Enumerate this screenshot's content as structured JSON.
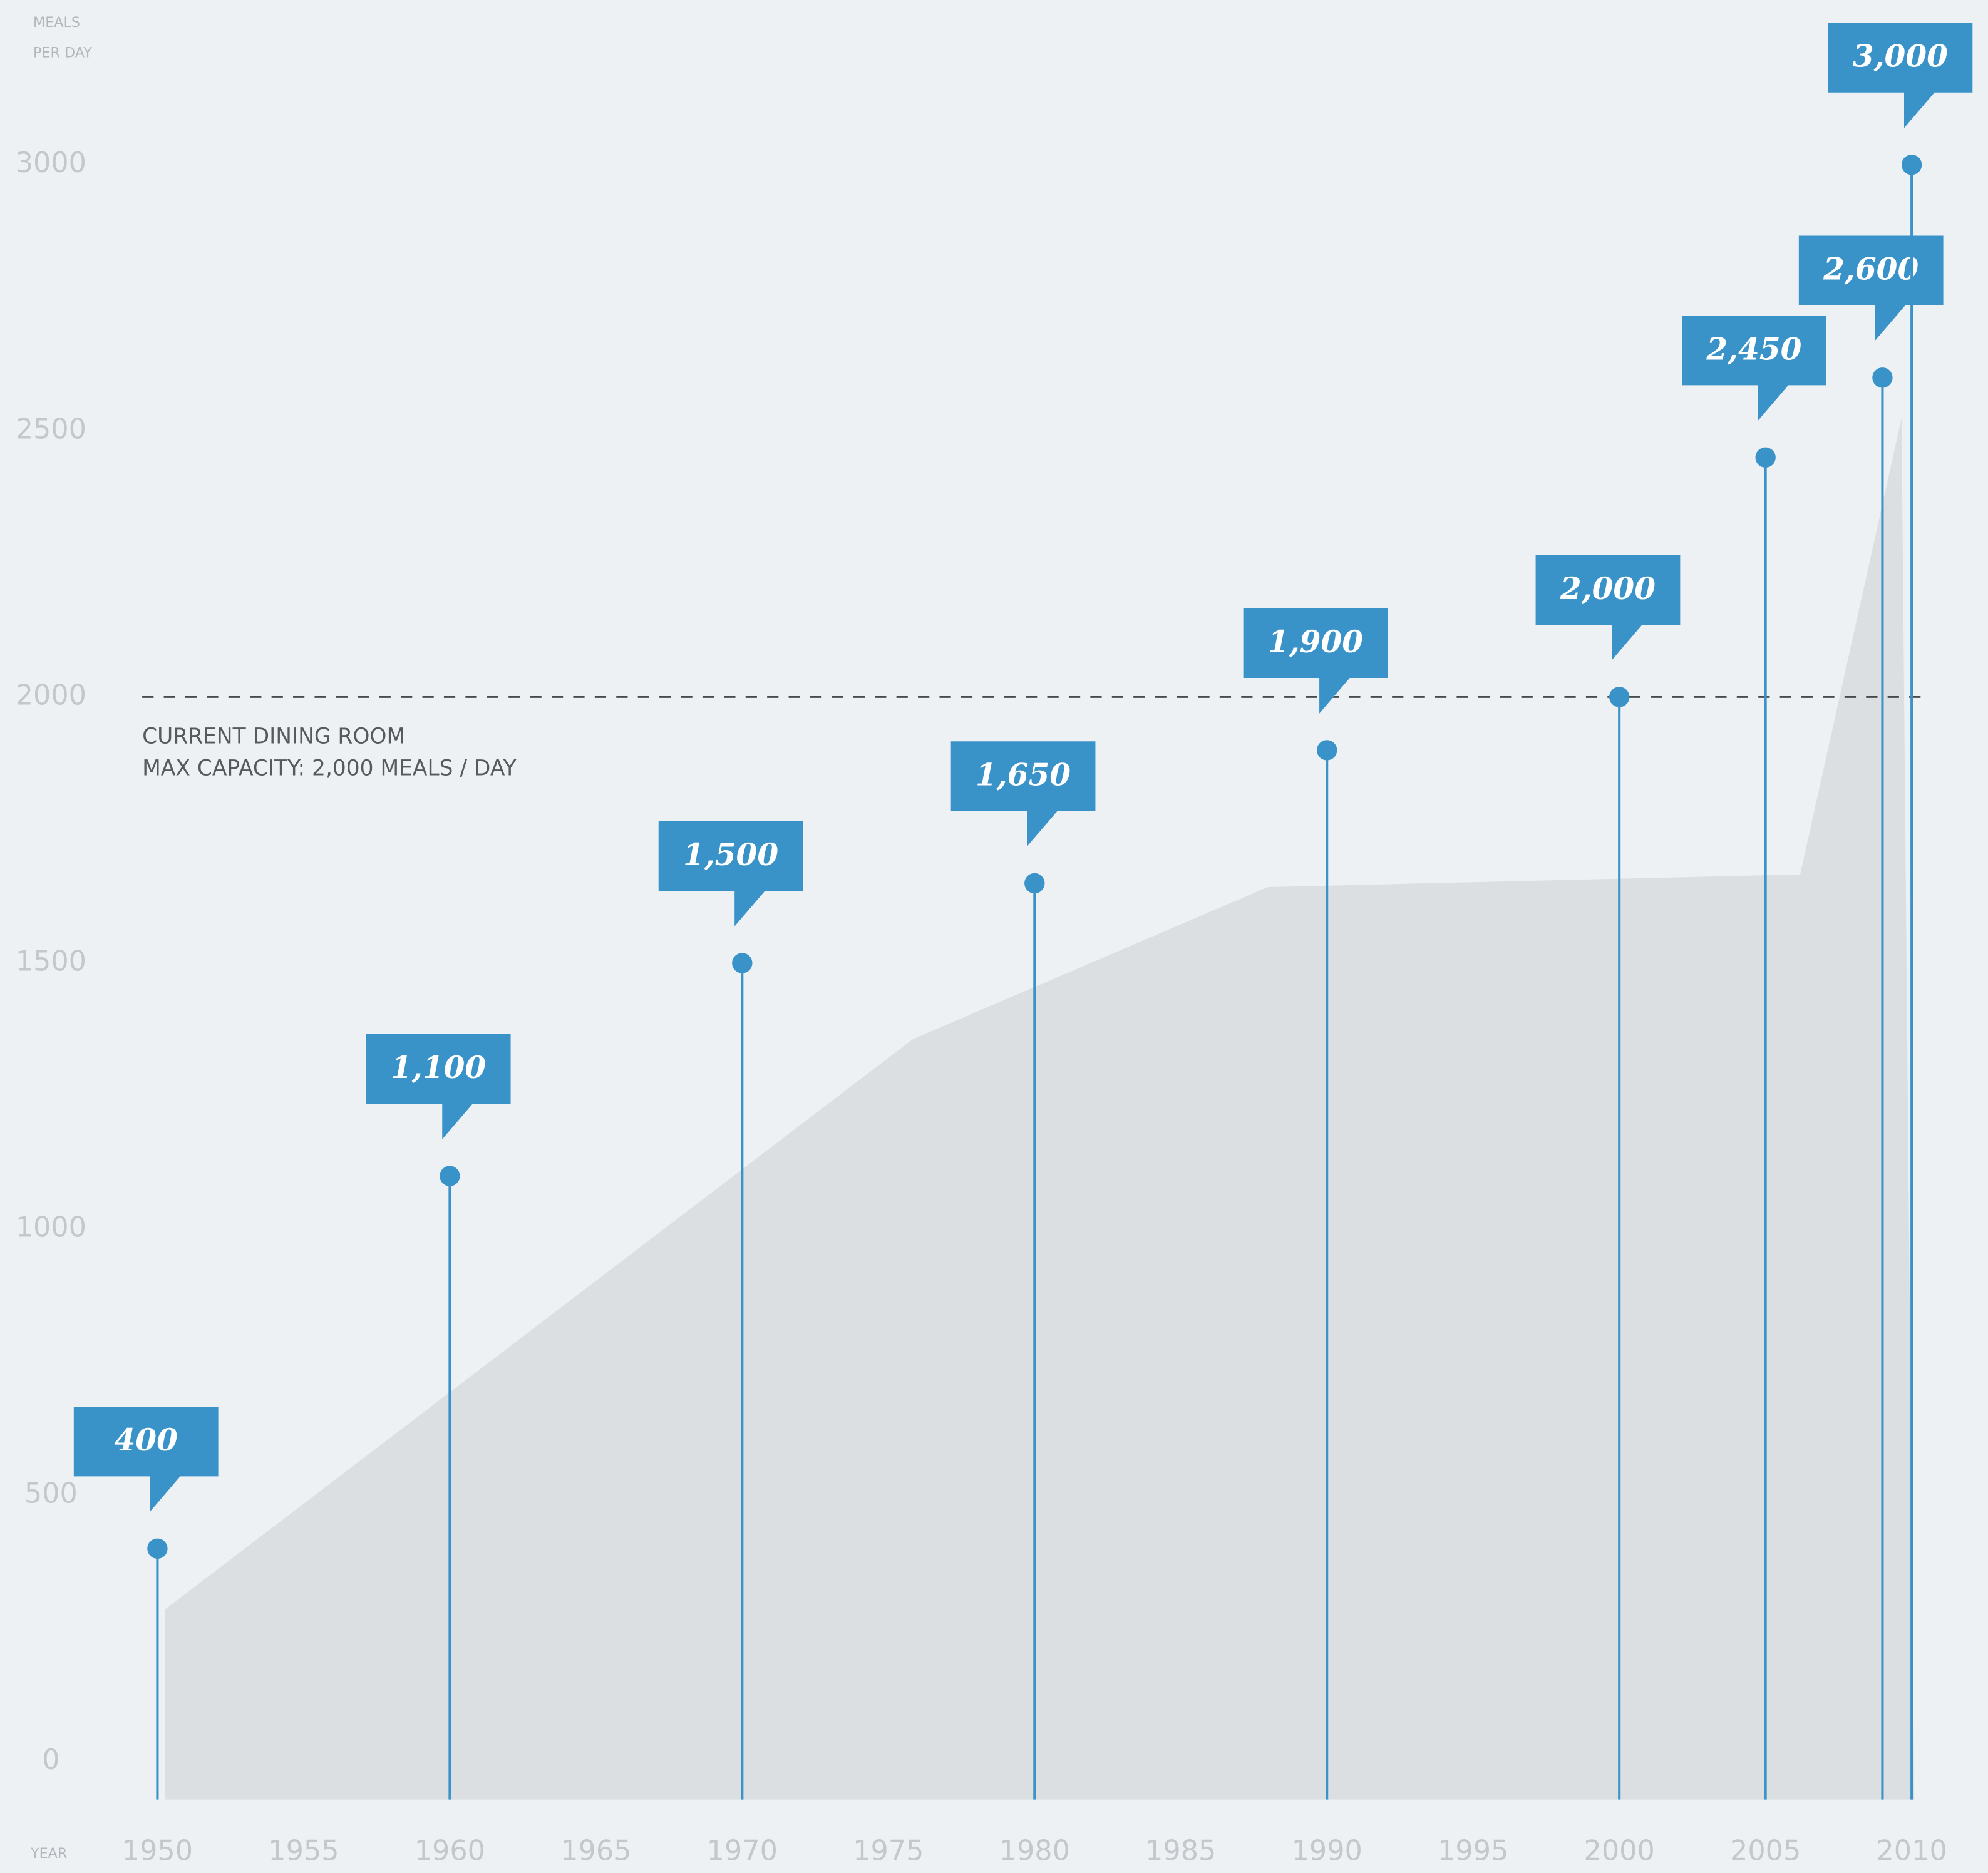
{
  "chart_data": {
    "type": "lollipop",
    "y_label": [
      "MEALS",
      "PER DAY"
    ],
    "x_label": "YEAR",
    "x": [
      1950,
      1960,
      1970,
      1980,
      1990,
      2000,
      2005,
      2009,
      2010
    ],
    "values": [
      400,
      1100,
      1500,
      1650,
      1900,
      2000,
      2450,
      2600,
      3000
    ],
    "value_labels": [
      "400",
      "1,100",
      "1,500",
      "1,650",
      "1,900",
      "2,000",
      "2,450",
      "2,600",
      "3,000"
    ],
    "color": "#3a93c8",
    "xlim": [
      1950,
      2010
    ],
    "ylim": [
      0,
      3000
    ],
    "xticks": [
      1950,
      1955,
      1960,
      1965,
      1970,
      1975,
      1980,
      1985,
      1990,
      1995,
      2000,
      2005,
      2010
    ],
    "yticks": [
      0,
      500,
      1000,
      1500,
      2000,
      2500,
      3000
    ],
    "reference_line": {
      "value": 2000,
      "label": [
        "CURRENT DINING ROOM",
        "MAX CAPACITY: 2,000 MEALS / DAY"
      ]
    }
  }
}
